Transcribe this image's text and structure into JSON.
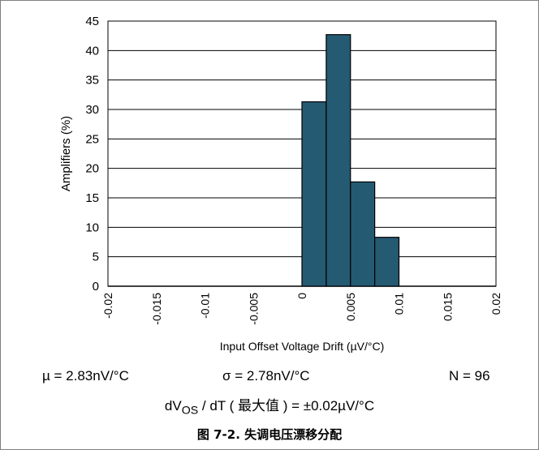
{
  "chart_data": {
    "type": "bar",
    "title": "",
    "xlabel": "Input Offset Voltage Drift (µV/°C)",
    "ylabel": "Amplifiers (%)",
    "ylim": [
      0,
      45
    ],
    "xlim": [
      -0.02,
      0.02
    ],
    "yticks": [
      "0",
      "5",
      "10",
      "15",
      "20",
      "25",
      "30",
      "35",
      "40",
      "45"
    ],
    "xticks": [
      "-0.02",
      "-0.015",
      "-0.01",
      "-0.005",
      "0",
      "0.005",
      "0.01",
      "0.015",
      "0.02"
    ],
    "bin_width": 0.0025,
    "bins": [
      {
        "start": 0.0,
        "end": 0.0025,
        "value": 31.3
      },
      {
        "start": 0.0025,
        "end": 0.005,
        "value": 42.7
      },
      {
        "start": 0.005,
        "end": 0.0075,
        "value": 17.7
      },
      {
        "start": 0.0075,
        "end": 0.01,
        "value": 8.3
      }
    ],
    "bar_color": "#255a73",
    "grid": "horizontal"
  },
  "stats": {
    "mean": "µ = 2.83nV/°C",
    "sigma": "σ  = 2.78nV/°C",
    "count": "N = 96"
  },
  "formula": {
    "lhs": "dV",
    "lhs_sub": "OS",
    "mid": " / dT ( ",
    "cjk": "最大值",
    "rhs": " ) = ±0.02µV/°C"
  },
  "caption": "图 7-2. 失调电压漂移分配"
}
